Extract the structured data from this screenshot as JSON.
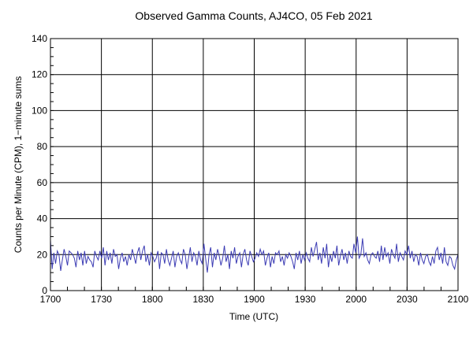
{
  "chart_data": {
    "type": "line",
    "title": "Observed Gamma Counts, AJ4CO, 05 Feb 2021",
    "xlabel": "Time (UTC)",
    "ylabel": "Counts per Minute (CPM), 1−minute sums",
    "x_tick_labels": [
      "1700",
      "1730",
      "1800",
      "1830",
      "1900",
      "1930",
      "2000",
      "2030",
      "2100"
    ],
    "y_tick_labels": [
      "0",
      "20",
      "40",
      "60",
      "80",
      "100",
      "120",
      "140"
    ],
    "xlim": [
      "1700",
      "2100"
    ],
    "ylim": [
      0,
      140
    ],
    "grid": true,
    "line_color": "#3c3cb4",
    "series": [
      {
        "x_start": "1700",
        "values": [
          28,
          12,
          21,
          15,
          22,
          20,
          11,
          17,
          23,
          19,
          14,
          22,
          21,
          20,
          18,
          13,
          22,
          17,
          21,
          14,
          22,
          15,
          19,
          17,
          16,
          13,
          22,
          19,
          17,
          22,
          18,
          24,
          14,
          22,
          17,
          21,
          15,
          23,
          19,
          20,
          12,
          18,
          21,
          16,
          19,
          14,
          20,
          17,
          23,
          19,
          15,
          21,
          24,
          17,
          22,
          25,
          16,
          20,
          14,
          21,
          19,
          16,
          18,
          22,
          12,
          21,
          20,
          15,
          23,
          17,
          14,
          18,
          22,
          13,
          19,
          21,
          17,
          15,
          23,
          20,
          12,
          18,
          24,
          16,
          21,
          19,
          14,
          22,
          17,
          15,
          26,
          18,
          10,
          20,
          24,
          13,
          21,
          17,
          23,
          19,
          14,
          18,
          25,
          16,
          20,
          12,
          22,
          18,
          24,
          15,
          19,
          21,
          13,
          20,
          23,
          17,
          14,
          22,
          19,
          16,
          18,
          21,
          19,
          23,
          20,
          22,
          14,
          18,
          21,
          13,
          19,
          15,
          21,
          20,
          22,
          16,
          19,
          14,
          20,
          18,
          21,
          19,
          16,
          12,
          21,
          17,
          22,
          15,
          20,
          17,
          21,
          18,
          16,
          24,
          19,
          23,
          27,
          17,
          21,
          15,
          24,
          18,
          26,
          13,
          20,
          16,
          22,
          18,
          25,
          14,
          19,
          23,
          17,
          21,
          15,
          22,
          19,
          18,
          26,
          21,
          30,
          18,
          20,
          29,
          19,
          21,
          17,
          15,
          20,
          21,
          19,
          18,
          22,
          16,
          25,
          17,
          24,
          19,
          21,
          15,
          23,
          20,
          18,
          26,
          16,
          21,
          19,
          17,
          22,
          20,
          25,
          18,
          22,
          16,
          20,
          19,
          14,
          21,
          17,
          15,
          19,
          20,
          16,
          14,
          19,
          15,
          22,
          24,
          17,
          21,
          15,
          24,
          16,
          14,
          19,
          18,
          14,
          12,
          17,
          20
        ]
      }
    ]
  }
}
